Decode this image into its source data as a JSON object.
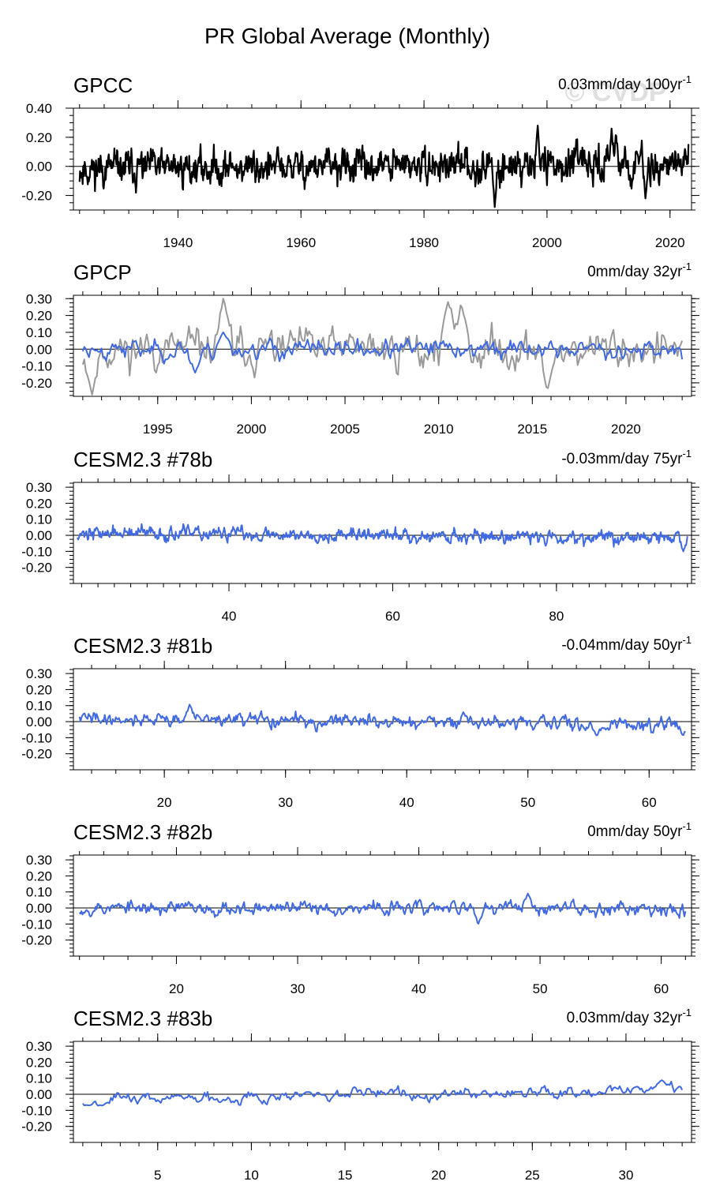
{
  "figure": {
    "title": "PR Global Average (Monthly)",
    "watermark": "© CVDP"
  },
  "colors": {
    "observed": "#000000",
    "observed_overlay": "#999999",
    "model": "#4169e1",
    "zero_line": "#000000"
  },
  "chart_data": [
    {
      "type": "line",
      "name": "GPCC",
      "trend_label": "0.03mm/day 100yr",
      "trend_exp": "-1",
      "xlim": [
        1923,
        2023.5
      ],
      "ylim": [
        -0.3,
        0.4
      ],
      "yticks": [
        0.4,
        0.2,
        0.0,
        -0.2
      ],
      "ytick_labels": [
        "0.40",
        "0.20",
        "0.00",
        "-0.20"
      ],
      "yminor_step": 0.05,
      "xticks": [
        1940,
        1960,
        1980,
        2000,
        2020
      ],
      "xminor_step": 4,
      "series": [
        {
          "name": "GPCC",
          "color": "#000000",
          "width": 2.2,
          "amp": 0.085,
          "trend": 0.0003,
          "seed": 11,
          "x0": 1924,
          "x1": 2023,
          "spikes": [
            [
              1998.5,
              0.28
            ],
            [
              2010.5,
              0.26
            ],
            [
              2011.2,
              0.24
            ],
            [
              1991.5,
              -0.28
            ],
            [
              2016.0,
              -0.22
            ]
          ]
        }
      ]
    },
    {
      "type": "line",
      "name": "GPCP",
      "trend_label": "0mm/day 32yr",
      "trend_exp": "-1",
      "xlim": [
        1990.5,
        2023.5
      ],
      "ylim": [
        -0.28,
        0.32
      ],
      "yticks": [
        0.3,
        0.2,
        0.1,
        0.0,
        -0.1,
        -0.2
      ],
      "ytick_labels": [
        "0.30",
        "0.20",
        "0.10",
        "0.00",
        "-0.10",
        "-0.20"
      ],
      "yminor_step": 0.025,
      "xticks": [
        1995,
        2000,
        2005,
        2010,
        2015,
        2020
      ],
      "xminor_step": 1,
      "series": [
        {
          "name": "GPCC",
          "color": "#999999",
          "width": 2,
          "amp": 0.085,
          "trend": 0.0,
          "seed": 11,
          "x0": 1991,
          "x1": 2023,
          "spikes": [
            [
              1998.5,
              0.3
            ],
            [
              2010.5,
              0.28
            ],
            [
              2011.2,
              0.28
            ],
            [
              1991.5,
              -0.27
            ],
            [
              2015.8,
              -0.25
            ]
          ]
        },
        {
          "name": "GPCP",
          "color": "#4169e1",
          "width": 2,
          "amp": 0.04,
          "trend": 0.0,
          "seed": 23,
          "x0": 1991,
          "x1": 2023,
          "spikes": [
            [
              1998.5,
              0.1
            ],
            [
              1997.0,
              -0.14
            ]
          ]
        }
      ]
    },
    {
      "type": "line",
      "name": "CESM2.3 #78b",
      "trend_label": "-0.03mm/day 75yr",
      "trend_exp": "-1",
      "xlim": [
        21,
        96.5
      ],
      "ylim": [
        -0.3,
        0.33
      ],
      "yticks": [
        0.3,
        0.2,
        0.1,
        0.0,
        -0.1,
        -0.2
      ],
      "ytick_labels": [
        "0.30",
        "0.20",
        "0.10",
        "0.00",
        "-0.10",
        "-0.20"
      ],
      "yminor_step": 0.025,
      "xticks": [
        40,
        60,
        80
      ],
      "xminor_step": 2,
      "series": [
        {
          "name": "CESM2.3 #78b",
          "color": "#4169e1",
          "width": 2,
          "amp": 0.03,
          "trend": -0.0004,
          "seed": 37,
          "x0": 21.5,
          "x1": 96,
          "spikes": [
            [
              95.5,
              -0.1
            ]
          ]
        }
      ]
    },
    {
      "type": "line",
      "name": "CESM2.3 #81b",
      "trend_label": "-0.04mm/day 50yr",
      "trend_exp": "-1",
      "xlim": [
        12.5,
        63.5
      ],
      "ylim": [
        -0.3,
        0.33
      ],
      "yticks": [
        0.3,
        0.2,
        0.1,
        0.0,
        -0.1,
        -0.2
      ],
      "ytick_labels": [
        "0.30",
        "0.20",
        "0.10",
        "0.00",
        "-0.10",
        "-0.20"
      ],
      "yminor_step": 0.025,
      "xticks": [
        20,
        30,
        40,
        50,
        60
      ],
      "xminor_step": 2,
      "series": [
        {
          "name": "CESM2.3 #81b",
          "color": "#4169e1",
          "width": 2,
          "amp": 0.03,
          "trend": -0.0008,
          "seed": 41,
          "x0": 13,
          "x1": 63,
          "spikes": [
            [
              22.1,
              0.11
            ],
            [
              55.7,
              -0.09
            ],
            [
              62.8,
              -0.09
            ]
          ]
        }
      ]
    },
    {
      "type": "line",
      "name": "CESM2.3 #82b",
      "trend_label": "0mm/day 50yr",
      "trend_exp": "-1",
      "xlim": [
        11.5,
        62.5
      ],
      "ylim": [
        -0.3,
        0.33
      ],
      "yticks": [
        0.3,
        0.2,
        0.1,
        0.0,
        -0.1,
        -0.2
      ],
      "ytick_labels": [
        "0.30",
        "0.20",
        "0.10",
        "0.00",
        "-0.10",
        "-0.20"
      ],
      "yminor_step": 0.025,
      "xticks": [
        20,
        30,
        40,
        50,
        60
      ],
      "xminor_step": 2,
      "series": [
        {
          "name": "CESM2.3 #82b",
          "color": "#4169e1",
          "width": 2,
          "amp": 0.03,
          "trend": 0.0,
          "seed": 53,
          "x0": 12,
          "x1": 62,
          "spikes": [
            [
              44.9,
              -0.1
            ],
            [
              49.0,
              0.09
            ]
          ]
        }
      ]
    },
    {
      "type": "line",
      "name": "CESM2.3 #83b",
      "trend_label": "0.03mm/day 32yr",
      "trend_exp": "-1",
      "xlim": [
        0.5,
        33.5
      ],
      "ylim": [
        -0.3,
        0.33
      ],
      "yticks": [
        0.3,
        0.2,
        0.1,
        0.0,
        -0.1,
        -0.2
      ],
      "ytick_labels": [
        "0.30",
        "0.20",
        "0.10",
        "0.00",
        "-0.10",
        "-0.20"
      ],
      "yminor_step": 0.025,
      "xticks": [
        5,
        10,
        15,
        20,
        25,
        30
      ],
      "xminor_step": 1,
      "series": [
        {
          "name": "CESM2.3 #83b",
          "color": "#4169e1",
          "width": 2,
          "amp": 0.025,
          "trend": 0.0022,
          "seed": 67,
          "x0": 1,
          "x1": 33,
          "spikes": [
            [
              31.9,
              0.09
            ],
            [
              1.3,
              -0.07
            ]
          ]
        }
      ]
    }
  ]
}
